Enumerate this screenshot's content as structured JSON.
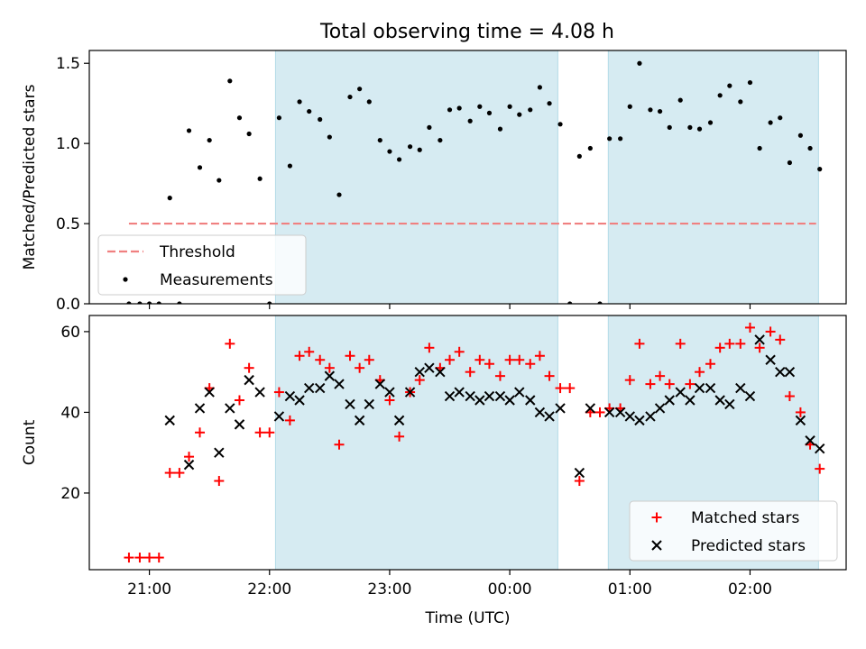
{
  "figure": {
    "title": "Total observing time = 4.08 h"
  },
  "chart_data": [
    {
      "type": "scatter",
      "panel": "top",
      "ylabel": "Matched/Predicted stars",
      "xlabel": "",
      "ylim": [
        0,
        1.58
      ],
      "xlim": [
        20.5,
        2.8
      ],
      "yticks": [
        0.0,
        0.5,
        1.0,
        1.5
      ],
      "ytick_labels": [
        "0.0",
        "0.5",
        "1.0",
        "1.5"
      ],
      "shaded_intervals": [
        {
          "start": 22.05,
          "end": 0.4,
          "color": "#add8e6"
        },
        {
          "start": 0.82,
          "end": 2.57,
          "color": "#add8e6"
        }
      ],
      "legend": {
        "position": "lower-left",
        "entries": [
          {
            "label": "Threshold",
            "style": "dashed-line",
            "color": "#f08080"
          },
          {
            "label": "Measurements",
            "style": "dot",
            "color": "#000000"
          }
        ]
      },
      "threshold": {
        "name": "Threshold",
        "value": 0.5,
        "x_start": 20.83,
        "x_end": 2.55,
        "color": "#f08080"
      },
      "series": [
        {
          "name": "Measurements",
          "color": "#000000",
          "points": [
            [
              20.83,
              0.0
            ],
            [
              20.92,
              0.0
            ],
            [
              21.0,
              0.0
            ],
            [
              21.08,
              0.0
            ],
            [
              21.25,
              0.0
            ],
            [
              21.17,
              0.66
            ],
            [
              21.33,
              1.08
            ],
            [
              21.42,
              0.85
            ],
            [
              21.5,
              1.02
            ],
            [
              21.58,
              0.77
            ],
            [
              21.67,
              1.39
            ],
            [
              21.75,
              1.16
            ],
            [
              21.83,
              1.06
            ],
            [
              21.92,
              0.78
            ],
            [
              22.0,
              0.0
            ],
            [
              22.08,
              1.16
            ],
            [
              22.17,
              0.86
            ],
            [
              22.25,
              1.26
            ],
            [
              22.33,
              1.2
            ],
            [
              22.42,
              1.15
            ],
            [
              22.5,
              1.04
            ],
            [
              22.58,
              0.68
            ],
            [
              22.67,
              1.29
            ],
            [
              22.75,
              1.34
            ],
            [
              22.83,
              1.26
            ],
            [
              22.92,
              1.02
            ],
            [
              23.0,
              0.95
            ],
            [
              23.08,
              0.9
            ],
            [
              23.17,
              0.98
            ],
            [
              23.25,
              0.96
            ],
            [
              23.33,
              1.1
            ],
            [
              23.42,
              1.02
            ],
            [
              23.5,
              1.21
            ],
            [
              23.58,
              1.22
            ],
            [
              23.67,
              1.14
            ],
            [
              23.75,
              1.23
            ],
            [
              23.83,
              1.19
            ],
            [
              23.92,
              1.09
            ],
            [
              0.0,
              1.23
            ],
            [
              0.08,
              1.18
            ],
            [
              0.17,
              1.21
            ],
            [
              0.25,
              1.35
            ],
            [
              0.33,
              1.25
            ],
            [
              0.42,
              1.12
            ],
            [
              0.5,
              0.0
            ],
            [
              0.58,
              0.92
            ],
            [
              0.67,
              0.97
            ],
            [
              0.75,
              0.0
            ],
            [
              0.83,
              1.03
            ],
            [
              0.92,
              1.03
            ],
            [
              1.0,
              1.23
            ],
            [
              1.08,
              1.5
            ],
            [
              1.17,
              1.21
            ],
            [
              1.25,
              1.2
            ],
            [
              1.33,
              1.1
            ],
            [
              1.42,
              1.27
            ],
            [
              1.5,
              1.1
            ],
            [
              1.58,
              1.09
            ],
            [
              1.67,
              1.13
            ],
            [
              1.75,
              1.3
            ],
            [
              1.83,
              1.36
            ],
            [
              1.92,
              1.26
            ],
            [
              2.0,
              1.38
            ],
            [
              2.08,
              0.97
            ],
            [
              2.17,
              1.13
            ],
            [
              2.25,
              1.16
            ],
            [
              2.33,
              0.88
            ],
            [
              2.42,
              1.05
            ],
            [
              2.5,
              0.97
            ],
            [
              2.58,
              0.84
            ]
          ]
        }
      ]
    },
    {
      "type": "scatter",
      "panel": "bottom",
      "ylabel": "Count",
      "xlabel": "Time (UTC)",
      "ylim": [
        1,
        64
      ],
      "xlim": [
        20.5,
        2.8
      ],
      "yticks": [
        20,
        40,
        60
      ],
      "ytick_labels": [
        "20",
        "40",
        "60"
      ],
      "xticks": [
        21,
        22,
        23,
        0,
        1,
        2
      ],
      "xtick_labels": [
        "21:00",
        "22:00",
        "23:00",
        "00:00",
        "01:00",
        "02:00"
      ],
      "shaded_intervals": [
        {
          "start": 22.05,
          "end": 0.4,
          "color": "#add8e6"
        },
        {
          "start": 0.82,
          "end": 2.57,
          "color": "#add8e6"
        }
      ],
      "legend": {
        "position": "lower-right",
        "entries": [
          {
            "label": "Matched stars",
            "style": "plus",
            "color": "#ff0000"
          },
          {
            "label": "Predicted stars",
            "style": "cross",
            "color": "#000000"
          }
        ]
      },
      "series": [
        {
          "name": "Matched stars",
          "marker": "plus",
          "color": "#ff0000",
          "points": [
            [
              20.83,
              4
            ],
            [
              20.92,
              4
            ],
            [
              21.0,
              4
            ],
            [
              21.08,
              4
            ],
            [
              21.17,
              25
            ],
            [
              21.25,
              25
            ],
            [
              21.33,
              29
            ],
            [
              21.42,
              35
            ],
            [
              21.5,
              46
            ],
            [
              21.58,
              23
            ],
            [
              21.67,
              57
            ],
            [
              21.75,
              43
            ],
            [
              21.83,
              51
            ],
            [
              21.92,
              35
            ],
            [
              22.0,
              35
            ],
            [
              22.08,
              45
            ],
            [
              22.17,
              38
            ],
            [
              22.25,
              54
            ],
            [
              22.33,
              55
            ],
            [
              22.42,
              53
            ],
            [
              22.5,
              51
            ],
            [
              22.58,
              32
            ],
            [
              22.67,
              54
            ],
            [
              22.75,
              51
            ],
            [
              22.83,
              53
            ],
            [
              22.92,
              48
            ],
            [
              23.0,
              43
            ],
            [
              23.08,
              34
            ],
            [
              23.17,
              45
            ],
            [
              23.25,
              48
            ],
            [
              23.33,
              56
            ],
            [
              23.42,
              51
            ],
            [
              23.5,
              53
            ],
            [
              23.58,
              55
            ],
            [
              23.67,
              50
            ],
            [
              23.75,
              53
            ],
            [
              23.83,
              52
            ],
            [
              23.92,
              49
            ],
            [
              0.0,
              53
            ],
            [
              0.08,
              53
            ],
            [
              0.17,
              52
            ],
            [
              0.25,
              54
            ],
            [
              0.33,
              49
            ],
            [
              0.42,
              46
            ],
            [
              0.5,
              46
            ],
            [
              0.58,
              23
            ],
            [
              0.67,
              40
            ],
            [
              0.75,
              40
            ],
            [
              0.83,
              41
            ],
            [
              0.92,
              41
            ],
            [
              1.0,
              48
            ],
            [
              1.08,
              57
            ],
            [
              1.17,
              47
            ],
            [
              1.25,
              49
            ],
            [
              1.33,
              47
            ],
            [
              1.42,
              57
            ],
            [
              1.5,
              47
            ],
            [
              1.58,
              50
            ],
            [
              1.67,
              52
            ],
            [
              1.75,
              56
            ],
            [
              1.83,
              57
            ],
            [
              1.92,
              57
            ],
            [
              2.0,
              61
            ],
            [
              2.08,
              56
            ],
            [
              2.17,
              60
            ],
            [
              2.25,
              58
            ],
            [
              2.33,
              44
            ],
            [
              2.42,
              40
            ],
            [
              2.5,
              32
            ],
            [
              2.58,
              26
            ]
          ]
        },
        {
          "name": "Predicted stars",
          "marker": "cross",
          "color": "#000000",
          "points": [
            [
              21.17,
              38
            ],
            [
              21.33,
              27
            ],
            [
              21.42,
              41
            ],
            [
              21.5,
              45
            ],
            [
              21.58,
              30
            ],
            [
              21.67,
              41
            ],
            [
              21.75,
              37
            ],
            [
              21.83,
              48
            ],
            [
              21.92,
              45
            ],
            [
              22.08,
              39
            ],
            [
              22.17,
              44
            ],
            [
              22.25,
              43
            ],
            [
              22.33,
              46
            ],
            [
              22.42,
              46
            ],
            [
              22.5,
              49
            ],
            [
              22.58,
              47
            ],
            [
              22.67,
              42
            ],
            [
              22.75,
              38
            ],
            [
              22.83,
              42
            ],
            [
              22.92,
              47
            ],
            [
              23.0,
              45
            ],
            [
              23.08,
              38
            ],
            [
              23.17,
              45
            ],
            [
              23.25,
              50
            ],
            [
              23.33,
              51
            ],
            [
              23.42,
              50
            ],
            [
              23.5,
              44
            ],
            [
              23.58,
              45
            ],
            [
              23.67,
              44
            ],
            [
              23.75,
              43
            ],
            [
              23.83,
              44
            ],
            [
              23.92,
              44
            ],
            [
              0.0,
              43
            ],
            [
              0.08,
              45
            ],
            [
              0.17,
              43
            ],
            [
              0.25,
              40
            ],
            [
              0.33,
              39
            ],
            [
              0.42,
              41
            ],
            [
              0.58,
              25
            ],
            [
              0.67,
              41
            ],
            [
              0.83,
              40
            ],
            [
              0.92,
              40
            ],
            [
              1.0,
              39
            ],
            [
              1.08,
              38
            ],
            [
              1.17,
              39
            ],
            [
              1.25,
              41
            ],
            [
              1.33,
              43
            ],
            [
              1.42,
              45
            ],
            [
              1.5,
              43
            ],
            [
              1.58,
              46
            ],
            [
              1.67,
              46
            ],
            [
              1.75,
              43
            ],
            [
              1.83,
              42
            ],
            [
              1.92,
              46
            ],
            [
              2.0,
              44
            ],
            [
              2.08,
              58
            ],
            [
              2.17,
              53
            ],
            [
              2.25,
              50
            ],
            [
              2.33,
              50
            ],
            [
              2.42,
              38
            ],
            [
              2.5,
              33
            ],
            [
              2.58,
              31
            ]
          ]
        }
      ]
    }
  ]
}
